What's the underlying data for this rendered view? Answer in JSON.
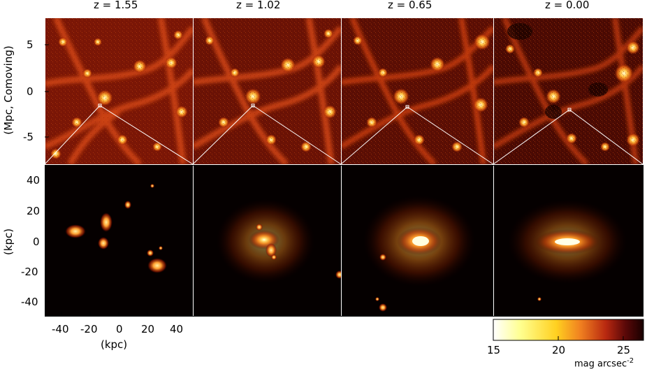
{
  "panel_titles": [
    "z = 1.55",
    "z = 1.02",
    "z = 0.65",
    "z = 0.00"
  ],
  "top_row": {
    "ylabel": "(Mpc, Comoving)",
    "yticks": [
      "5",
      "0",
      "-5"
    ]
  },
  "bottom_row": {
    "ylabel": "(kpc)",
    "yticks": [
      "40",
      "20",
      "0",
      "-20",
      "-40"
    ],
    "xlabel": "(kpc)",
    "xticks": [
      "-40",
      "-20",
      "0",
      "20",
      "40"
    ]
  },
  "colorbar": {
    "ticks": [
      "15",
      "20",
      "25"
    ],
    "unit": "mag arcsec",
    "unit_exp": "-2"
  },
  "colors": {
    "background": "#0a0000",
    "filament": "#b8240a",
    "bright": "#ffd060",
    "frame": "#ffffff"
  }
}
